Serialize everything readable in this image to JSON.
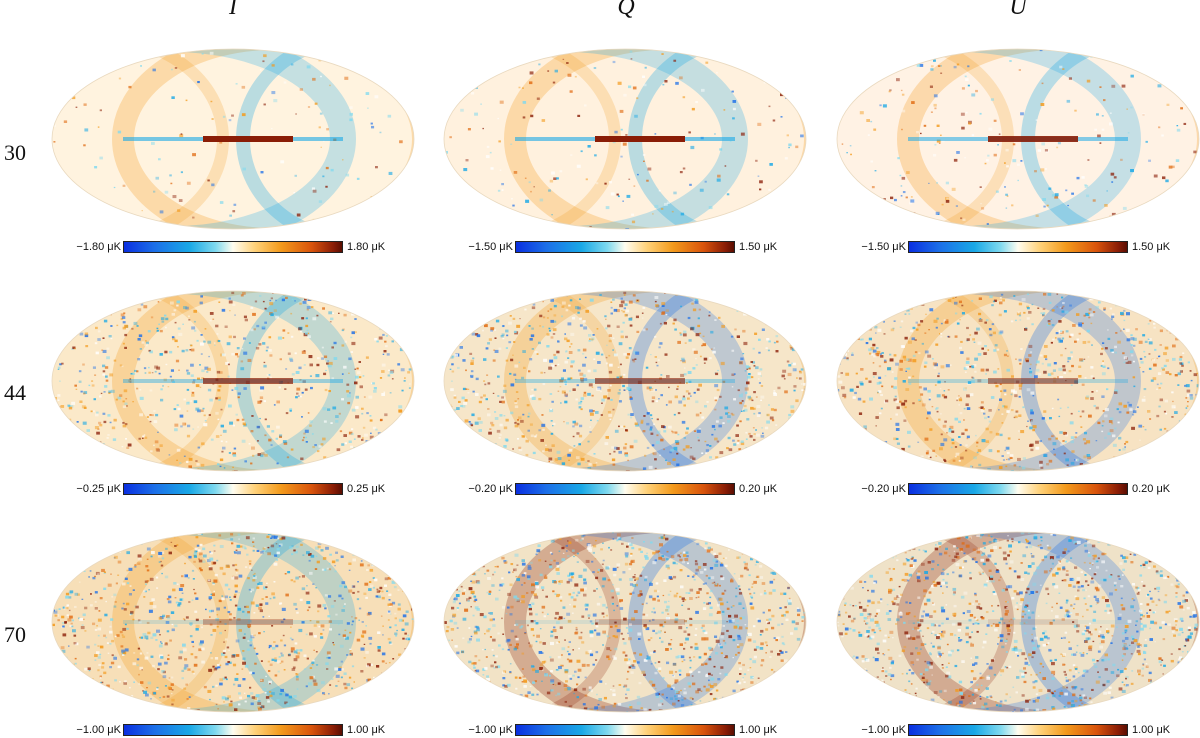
{
  "columns": [
    "I",
    "Q",
    "U"
  ],
  "rows": [
    {
      "label": "30",
      "colorbars": [
        {
          "min": "−1.80 μK",
          "max": "1.80 μK"
        },
        {
          "min": "−1.50 μK",
          "max": "1.50 μK"
        },
        {
          "min": "−1.50 μK",
          "max": "1.50 μK"
        }
      ]
    },
    {
      "label": "44",
      "colorbars": [
        {
          "min": "−0.25 μK",
          "max": "0.25 μK"
        },
        {
          "min": "−0.20 μK",
          "max": "0.20 μK"
        },
        {
          "min": "−0.20 μK",
          "max": "0.20 μK"
        }
      ]
    },
    {
      "label": "70",
      "colorbars": [
        {
          "min": "−1.00 μK",
          "max": "1.00 μK"
        },
        {
          "min": "−1.00 μK",
          "max": "1.00 μK"
        },
        {
          "min": "−1.00 μK",
          "max": "1.00 μK"
        }
      ]
    }
  ],
  "colors": {
    "blue": "#1c6fe8",
    "cyan": "#19a8e6",
    "neutral": "#fffdf0",
    "orange": "#f39a1c",
    "darkred": "#8a1d06"
  }
}
